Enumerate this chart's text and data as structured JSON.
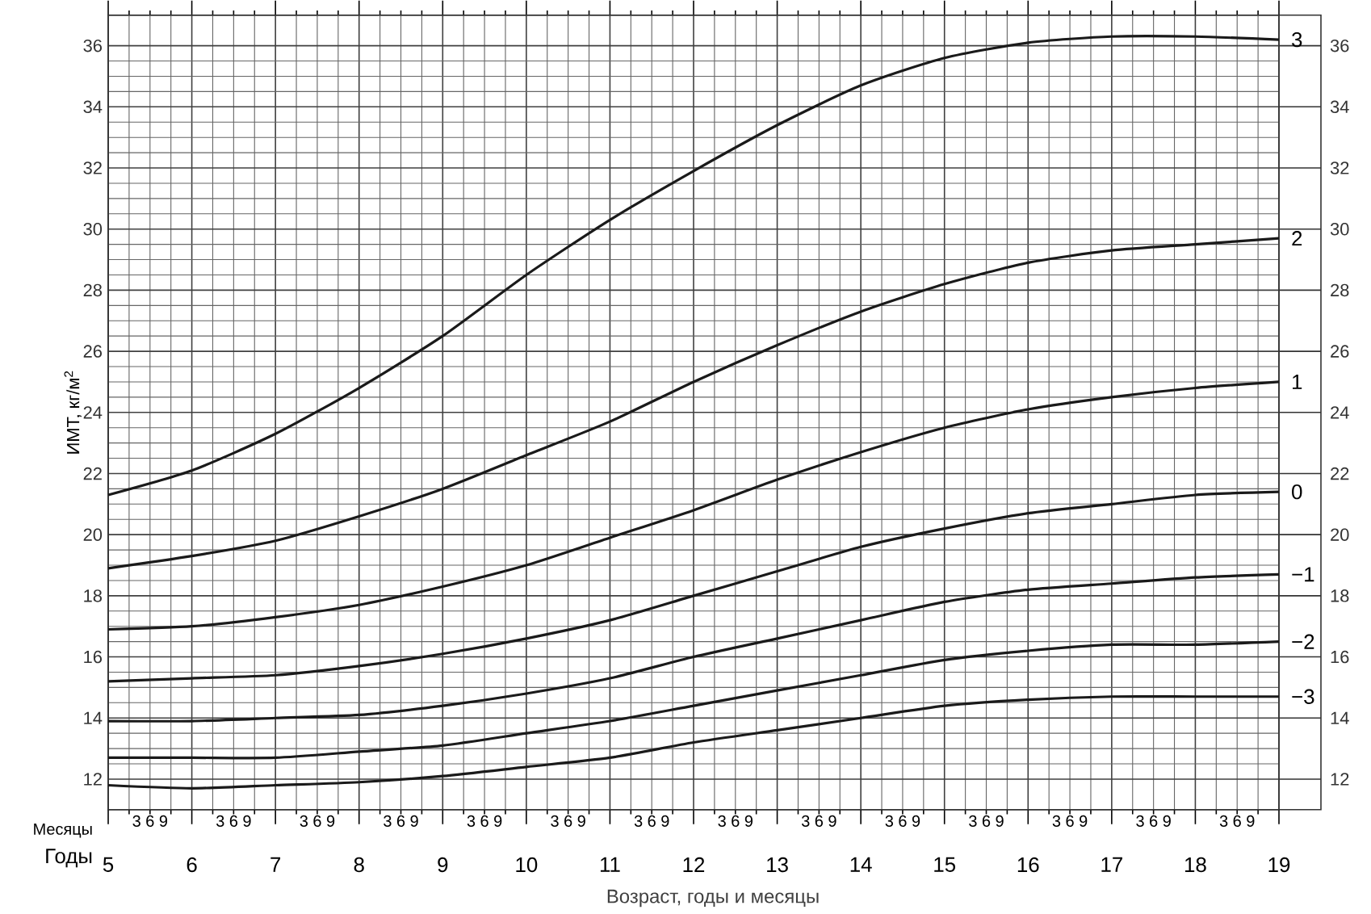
{
  "chart_data": {
    "type": "line",
    "xlabel": "Возраст, годы и месяцы",
    "ylabel": "ИМТ, кг/м$^{2}$",
    "annotations": [
      "Месяцы",
      "Годы",
      "3 6 9",
      "3 6 9",
      "3 6 9",
      "3 6 9",
      "3 6 9",
      "3 6 9",
      "3 6 9",
      "3 6 9",
      "3 6 9",
      "3 6 9",
      "3 6 9",
      "3 6 9",
      "3 6 9",
      "3 6 9"
    ],
    "x": [
      5,
      6,
      7,
      8,
      9,
      10,
      11,
      12,
      13,
      14,
      15,
      16,
      17,
      18,
      19
    ],
    "series": [
      {
        "name": "3",
        "color": "#1a1a1a",
        "values": [
          21.3,
          22.1,
          23.3,
          24.8,
          26.5,
          28.5,
          30.3,
          31.9,
          33.4,
          34.7,
          35.6,
          36.1,
          36.3,
          36.3,
          36.2
        ]
      },
      {
        "name": "2",
        "color": "#1a1a1a",
        "values": [
          18.9,
          19.3,
          19.8,
          20.6,
          21.5,
          22.6,
          23.7,
          25.0,
          26.2,
          27.3,
          28.2,
          28.9,
          29.3,
          29.5,
          29.7
        ]
      },
      {
        "name": "1",
        "color": "#1a1a1a",
        "values": [
          16.9,
          17.0,
          17.3,
          17.7,
          18.3,
          19.0,
          19.9,
          20.8,
          21.8,
          22.7,
          23.5,
          24.1,
          24.5,
          24.8,
          25.0
        ]
      },
      {
        "name": "0",
        "color": "#1a1a1a",
        "values": [
          15.2,
          15.3,
          15.4,
          15.7,
          16.1,
          16.6,
          17.2,
          18.0,
          18.8,
          19.6,
          20.2,
          20.7,
          21.0,
          21.3,
          21.4
        ]
      },
      {
        "name": "−1",
        "color": "#1a1a1a",
        "values": [
          13.9,
          13.9,
          14.0,
          14.1,
          14.4,
          14.8,
          15.3,
          16.0,
          16.6,
          17.2,
          17.8,
          18.2,
          18.4,
          18.6,
          18.7
        ]
      },
      {
        "name": "−2",
        "color": "#1a1a1a",
        "values": [
          12.7,
          12.7,
          12.7,
          12.9,
          13.1,
          13.5,
          13.9,
          14.4,
          14.9,
          15.4,
          15.9,
          16.2,
          16.4,
          16.4,
          16.5
        ]
      },
      {
        "name": "−3",
        "color": "#1a1a1a",
        "values": [
          11.8,
          11.7,
          11.8,
          11.9,
          12.1,
          12.4,
          12.7,
          13.2,
          13.6,
          14.0,
          14.4,
          14.6,
          14.7,
          14.7,
          14.7
        ]
      }
    ],
    "xlim": [
      5,
      19
    ],
    "xticks": [
      5,
      6,
      7,
      8,
      9,
      10,
      11,
      12,
      13,
      14,
      15,
      16,
      17,
      18,
      19
    ],
    "ylim": [
      11,
      37
    ],
    "yticks": [
      12,
      14,
      16,
      18,
      20,
      22,
      24,
      26,
      28,
      30,
      32,
      34,
      36
    ],
    "y2lim": [
      11,
      37
    ],
    "y2ticks": [
      12,
      14,
      16,
      18,
      20,
      22,
      24,
      26,
      28,
      30,
      32,
      34,
      36
    ],
    "grid": true
  }
}
